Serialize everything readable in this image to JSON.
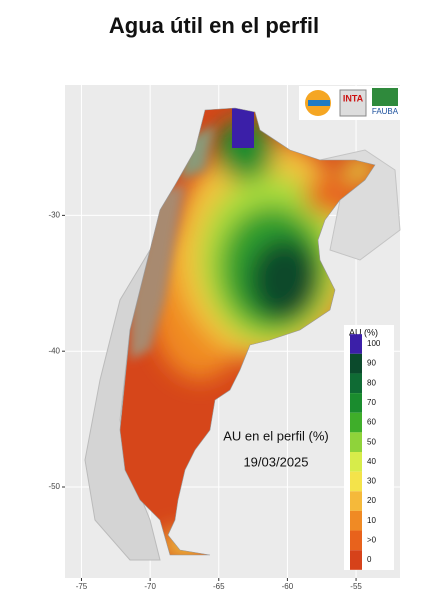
{
  "map": {
    "title": "Agua útil en el perfil",
    "annotation": "AU en el perfil (%)",
    "date": "19/03/2025",
    "logos": [
      "INTA",
      "FAUBA"
    ],
    "xlim": [
      -76.2,
      -51.8
    ],
    "xticks": [
      -75,
      -70,
      -65,
      -60,
      -55
    ],
    "ylim": [
      -56.7,
      -20.4
    ],
    "yticks": [
      -30,
      -40,
      -50
    ],
    "legend": {
      "title": "AU (%)",
      "labels": [
        100,
        90,
        80,
        70,
        60,
        50,
        40,
        30,
        20,
        10,
        ">0",
        0
      ],
      "colors": [
        "#3b1fa8",
        "#0b4a2c",
        "#0f6b34",
        "#1a8c2e",
        "#3fae2a",
        "#8fd33a",
        "#d7ec4a",
        "#f4e34a",
        "#f5b93a",
        "#f08a24",
        "#e8621c",
        "#d6421a"
      ]
    }
  }
}
